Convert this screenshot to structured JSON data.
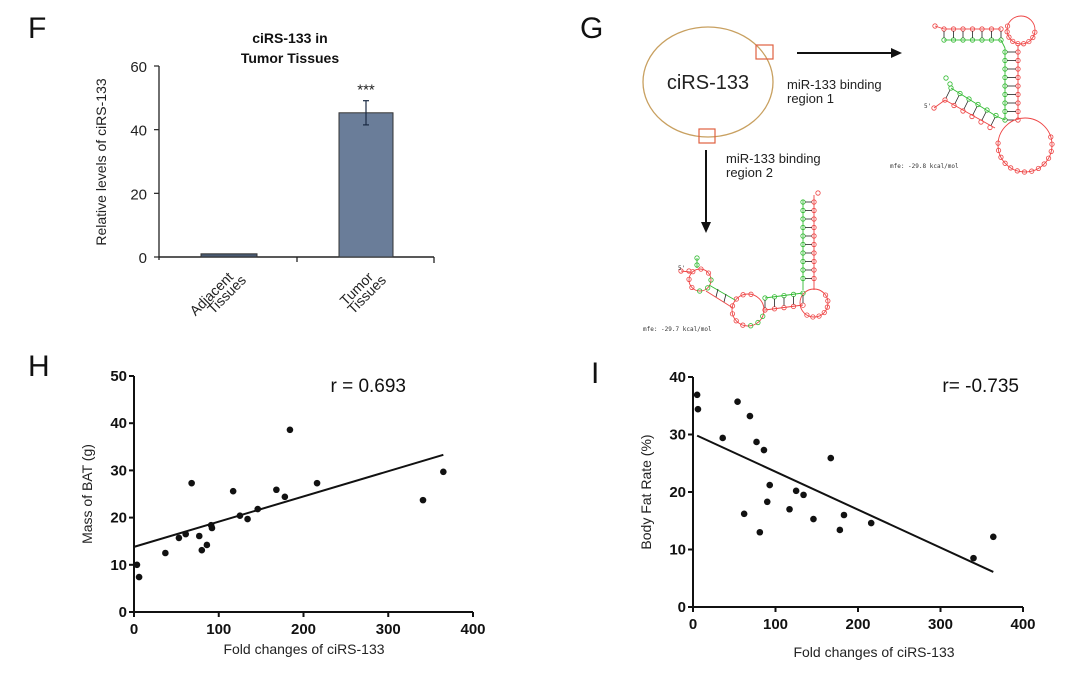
{
  "panels": {
    "F": "F",
    "G": "G",
    "H": "H",
    "I": "I"
  },
  "chart_data": [
    {
      "id": "F",
      "type": "bar",
      "title": "ciRS-133 in Tumor Tissues",
      "title_lines": [
        "ciRS-133 in",
        "Tumor Tissues"
      ],
      "ylabel": "Relative levels of ciRS-133",
      "xlabel": "",
      "categories": [
        "Adjacent Tissues",
        "Tumor Tissues"
      ],
      "category_lines": [
        [
          "Adjacent",
          "Tissues"
        ],
        [
          "Tumor",
          "Tissues"
        ]
      ],
      "values": [
        1,
        45.3
      ],
      "errors": [
        0,
        3.8
      ],
      "annotations": [
        "",
        "***"
      ],
      "ylim": [
        0,
        60
      ],
      "yticks": [
        0,
        20,
        40,
        60
      ],
      "bar_colors": [
        "#4a5a72",
        "#6a7d99"
      ],
      "grid": false
    },
    {
      "id": "H",
      "type": "scatter",
      "xlabel": "Fold changes of ciRS-133",
      "ylabel": "Mass of BAT (g)",
      "annotation": "r = 0.693",
      "xlim": [
        0,
        400
      ],
      "ylim": [
        0,
        50
      ],
      "xticks": [
        0,
        100,
        200,
        300,
        400
      ],
      "yticks": [
        0,
        10,
        20,
        30,
        40,
        50
      ],
      "points": [
        [
          3.5,
          10.0
        ],
        [
          6,
          7.4
        ],
        [
          37,
          12.5
        ],
        [
          53,
          15.7
        ],
        [
          61,
          16.5
        ],
        [
          68,
          27.3
        ],
        [
          77,
          16.1
        ],
        [
          80,
          13.1
        ],
        [
          86,
          14.2
        ],
        [
          91,
          18.4
        ],
        [
          92,
          17.8
        ],
        [
          117,
          25.6
        ],
        [
          125,
          20.4
        ],
        [
          134,
          19.7
        ],
        [
          146,
          21.8
        ],
        [
          168,
          25.9
        ],
        [
          178,
          24.4
        ],
        [
          184,
          38.6
        ],
        [
          216,
          27.3
        ],
        [
          341,
          23.7
        ],
        [
          365,
          29.7
        ]
      ],
      "fit_line": [
        [
          0,
          13.8
        ],
        [
          365,
          33.3
        ]
      ],
      "grid": false
    },
    {
      "id": "I",
      "type": "scatter",
      "xlabel": "Fold changes of ciRS-133",
      "ylabel": "Body Fat Rate (%)",
      "annotation": "r= -0.735",
      "xlim": [
        0,
        400
      ],
      "ylim": [
        0,
        40
      ],
      "xticks": [
        0,
        100,
        200,
        300,
        400
      ],
      "yticks": [
        0,
        10,
        20,
        30,
        40
      ],
      "points": [
        [
          5,
          36.9
        ],
        [
          6,
          34.4
        ],
        [
          36,
          29.4
        ],
        [
          54,
          35.7
        ],
        [
          62,
          16.2
        ],
        [
          69,
          33.2
        ],
        [
          77,
          28.7
        ],
        [
          81,
          13.0
        ],
        [
          86,
          27.3
        ],
        [
          90,
          18.3
        ],
        [
          93,
          21.2
        ],
        [
          117,
          17.0
        ],
        [
          125,
          20.2
        ],
        [
          134,
          19.5
        ],
        [
          146,
          15.3
        ],
        [
          167,
          25.9
        ],
        [
          178,
          13.4
        ],
        [
          183,
          16.0
        ],
        [
          216,
          14.6
        ],
        [
          340,
          8.5
        ],
        [
          364,
          12.2
        ]
      ],
      "fit_line": [
        [
          5,
          29.8
        ],
        [
          364,
          6.1
        ]
      ],
      "grid": false
    }
  ],
  "diagram": {
    "circle_label": "ciRS-133",
    "region1_label": [
      "miR-133 binding",
      "region 1"
    ],
    "region2_label": [
      "miR-133 binding",
      "region 2"
    ],
    "mfe1": "mfe: -29.8 kcal/mol",
    "mfe2": "mfe: -29.7 kcal/mol",
    "five_prime": "5'",
    "colors": {
      "circle": "#c8a060",
      "box": "#e06040",
      "mirna": "#33bb33",
      "target": "#ee4444"
    }
  }
}
